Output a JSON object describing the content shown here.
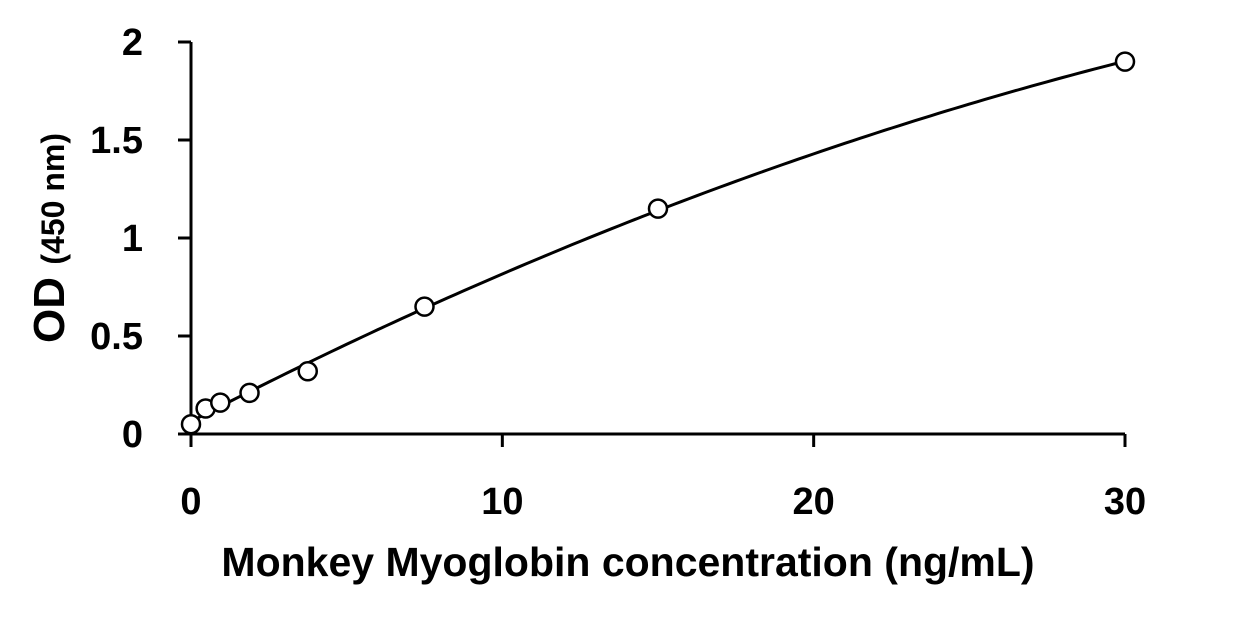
{
  "chart_data": {
    "type": "scatter",
    "xlabel": "Monkey Myoglobin concentration (ng/mL)",
    "ylabel_main": "OD",
    "ylabel_unit": "(450 nm)",
    "xlim": [
      0,
      30
    ],
    "ylim": [
      0,
      2
    ],
    "x_ticks": [
      0,
      10,
      20,
      30
    ],
    "y_ticks": [
      0,
      0.5,
      1,
      1.5,
      2
    ],
    "x_tick_labels": [
      "0",
      "10",
      "20",
      "30"
    ],
    "y_tick_labels": [
      "0",
      "0.5",
      "1",
      "1.5",
      "2"
    ],
    "grid": false,
    "legend": "none",
    "series": [
      {
        "marker": "open-circle",
        "x": [
          0,
          0.47,
          0.94,
          1.88,
          3.75,
          7.5,
          15,
          30
        ],
        "y": [
          0.05,
          0.13,
          0.16,
          0.21,
          0.32,
          0.65,
          1.15,
          1.9
        ],
        "trendline": true
      }
    ]
  }
}
